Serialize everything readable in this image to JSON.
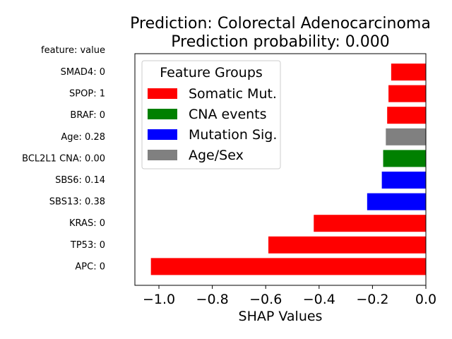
{
  "chart_data": {
    "type": "bar",
    "orientation": "horizontal",
    "title": "Prediction: Colorectal Adenocarcinoma",
    "subtitle": "Prediction probability: 0.000",
    "xlabel": "SHAP Values",
    "ylabel_header": "feature: value",
    "xlim": [
      -1.09,
      0.0
    ],
    "xticks": [
      "−1.0",
      "−0.8",
      "−0.6",
      "−0.4",
      "−0.2",
      "0.0"
    ],
    "xtick_values": [
      -1.0,
      -0.8,
      -0.6,
      -0.4,
      -0.2,
      0.0
    ],
    "categories": [
      "SMAD4: 0",
      "SPOP: 1",
      "BRAF: 0",
      "Age: 0.28",
      "BCL2L1 CNA: 0.00",
      "SBS6: 0.14",
      "SBS13: 0.38",
      "KRAS: 0",
      "TP53: 0",
      "APC: 0"
    ],
    "values": [
      -0.13,
      -0.14,
      -0.145,
      -0.15,
      -0.16,
      -0.165,
      -0.22,
      -0.42,
      -0.59,
      -1.03
    ],
    "groups": [
      "Somatic Mut.",
      "Somatic Mut.",
      "Somatic Mut.",
      "Age/Sex",
      "CNA events",
      "Mutation Sig.",
      "Mutation Sig.",
      "Somatic Mut.",
      "Somatic Mut.",
      "Somatic Mut."
    ],
    "legend": {
      "title": "Feature Groups",
      "placement": "top-left",
      "entries": [
        {
          "label": "Somatic Mut.",
          "color": "#ff0000"
        },
        {
          "label": "CNA events",
          "color": "#008000"
        },
        {
          "label": "Mutation Sig.",
          "color": "#0000ff"
        },
        {
          "label": "Age/Sex",
          "color": "#808080"
        }
      ]
    },
    "grid": false
  }
}
